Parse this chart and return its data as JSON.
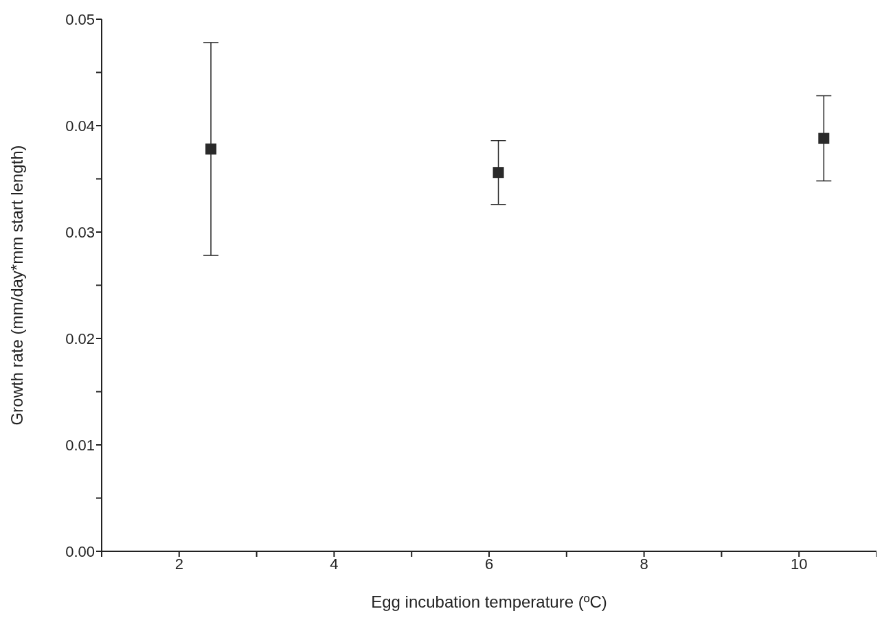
{
  "chart_data": {
    "type": "scatter",
    "xlabel": "Egg incubation temperature (ºC)",
    "ylabel": "Growth rate (mm/day*mm start length)",
    "x": [
      2.41,
      6.12,
      10.32
    ],
    "values": [
      0.0378,
      0.0356,
      0.0388
    ],
    "errors": [
      0.01,
      0.003,
      0.004
    ],
    "color": "#2a2a2a",
    "xlim": [
      1,
      11
    ],
    "xticks": [
      {
        "value": 1,
        "label": null
      },
      2,
      {
        "value": 3,
        "label": null
      },
      4,
      {
        "value": 5,
        "label": null
      },
      6,
      {
        "value": 7,
        "label": null
      },
      8,
      {
        "value": 9,
        "label": null
      },
      10,
      {
        "value": 11,
        "label": null
      }
    ],
    "ylim": [
      0,
      0.05
    ],
    "yticks": [
      {
        "value": 0,
        "label": "0.00"
      },
      {
        "value": 0.005,
        "label": null
      },
      {
        "value": 0.01,
        "label": "0.01"
      },
      {
        "value": 0.015,
        "label": null
      },
      {
        "value": 0.02,
        "label": "0.02"
      },
      {
        "value": 0.025,
        "label": null
      },
      {
        "value": 0.03,
        "label": "0.03"
      },
      {
        "value": 0.035,
        "label": null
      },
      {
        "value": 0.04,
        "label": "0.04"
      },
      {
        "value": 0.045,
        "label": null
      },
      {
        "value": 0.05,
        "label": "0.05"
      }
    ],
    "marker": "square",
    "grid": false,
    "legend": false
  }
}
